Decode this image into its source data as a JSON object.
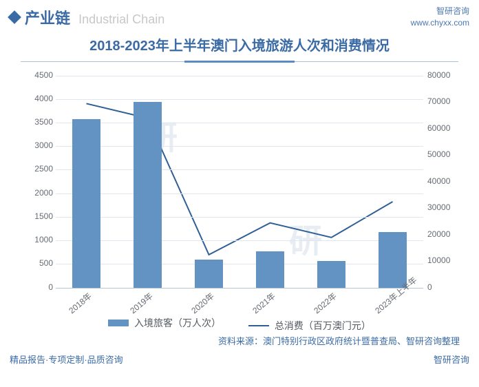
{
  "header": {
    "section_label": "产业链",
    "section_sub": "Industrial Chain",
    "brand_name": "智研咨询",
    "brand_url": "www.chyxx.com"
  },
  "chart": {
    "title": "2018-2023年上半年澳门入境旅游人次和消费情况",
    "type": "bar-line-combo",
    "categories": [
      "2018年",
      "2019年",
      "2020年",
      "2021年",
      "2022年",
      "2023年上半年"
    ],
    "bars": {
      "label": "入境旅客（万人次）",
      "values": [
        3580,
        3940,
        590,
        770,
        570,
        1180
      ],
      "color": "#6293c3",
      "bar_width_pct": 7.5
    },
    "line": {
      "label": "总消费（百万澳门元）",
      "values": [
        69500,
        64000,
        12500,
        24500,
        19000,
        32500
      ],
      "color": "#2e5f95",
      "stroke_width": 2
    },
    "y_left": {
      "min": 0,
      "max": 4500,
      "step": 500,
      "color": "#666b73"
    },
    "y_right": {
      "min": 0,
      "max": 80000,
      "step": 10000,
      "color": "#666b73"
    },
    "x_label_rotation": -40,
    "background_color": "#ffffff",
    "grid_color": "#dfe6ed",
    "axis_fontsize": 12,
    "title_fontsize": 20
  },
  "source": "资料来源：澳门特别行政区政府统计暨普查局、智研咨询整理",
  "footer": {
    "left": "精品报告·专项定制·品质咨询",
    "right": "智研咨询"
  },
  "watermarks": [
    "研",
    "研"
  ]
}
